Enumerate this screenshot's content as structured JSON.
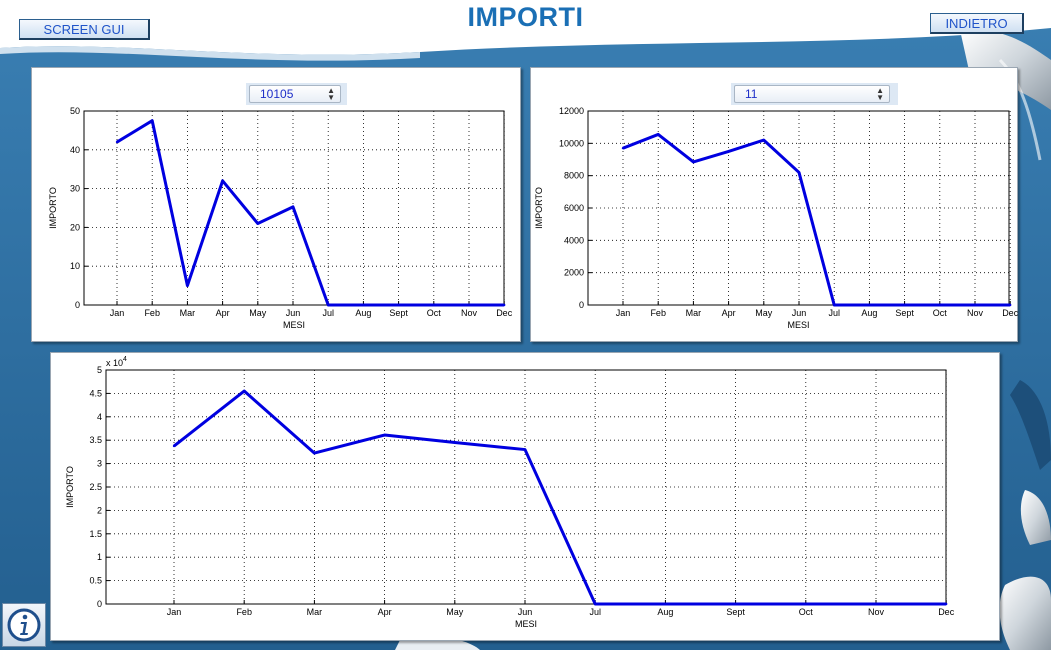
{
  "header": {
    "title": "IMPORTI",
    "screen_gui_label": "SCREEN GUI",
    "back_label": "INDIETRO"
  },
  "selectors": {
    "top_left": "10105",
    "top_right": "11"
  },
  "colors": {
    "line": "#0000e0",
    "title": "#1a6fb5",
    "button_text": "#1f53c9"
  },
  "icons": {
    "info": "info-icon"
  },
  "chart_data": [
    {
      "type": "line",
      "categories": [
        "Jan",
        "Feb",
        "Mar",
        "Apr",
        "May",
        "Jun",
        "Jul",
        "Aug",
        "Sept",
        "Oct",
        "Nov",
        "Dec"
      ],
      "values": [
        42,
        47.5,
        5,
        32,
        21,
        25.3,
        0,
        0,
        0,
        0,
        0,
        0
      ],
      "xlabel": "MESI",
      "ylabel": "IMPORTO",
      "ylim": [
        0,
        50
      ],
      "yticks": [
        0,
        10,
        20,
        30,
        40,
        50
      ],
      "ytick_labels": [
        "0",
        "10",
        "20",
        "30",
        "40",
        "50"
      ],
      "exponent_label": "",
      "grid": true
    },
    {
      "type": "line",
      "categories": [
        "Jan",
        "Feb",
        "Mar",
        "Apr",
        "May",
        "Jun",
        "Jul",
        "Aug",
        "Sept",
        "Oct",
        "Nov",
        "Dec"
      ],
      "values": [
        9700,
        10550,
        8850,
        9500,
        10200,
        8200,
        0,
        0,
        0,
        0,
        0,
        0
      ],
      "xlabel": "MESI",
      "ylabel": "IMPORTO",
      "ylim": [
        0,
        12000
      ],
      "yticks": [
        0,
        2000,
        4000,
        6000,
        8000,
        10000,
        12000
      ],
      "ytick_labels": [
        "0",
        "2000",
        "4000",
        "6000",
        "8000",
        "10000",
        "12000"
      ],
      "exponent_label": "",
      "grid": true
    },
    {
      "type": "line",
      "categories": [
        "Jan",
        "Feb",
        "Mar",
        "Apr",
        "May",
        "Jun",
        "Jul",
        "Aug",
        "Sept",
        "Oct",
        "Nov",
        "Dec"
      ],
      "values": [
        33750,
        45500,
        32250,
        36100,
        34500,
        33000,
        0,
        0,
        0,
        0,
        0,
        0
      ],
      "xlabel": "MESI",
      "ylabel": "IMPORTO",
      "ylim": [
        0,
        50000
      ],
      "yticks": [
        0,
        5000,
        10000,
        15000,
        20000,
        25000,
        30000,
        35000,
        40000,
        45000,
        50000
      ],
      "ytick_labels": [
        "0",
        "0.5",
        "1",
        "1.5",
        "2",
        "2.5",
        "3",
        "3.5",
        "4",
        "4.5",
        "5"
      ],
      "exponent_label": "x 10^4",
      "grid": true
    }
  ]
}
